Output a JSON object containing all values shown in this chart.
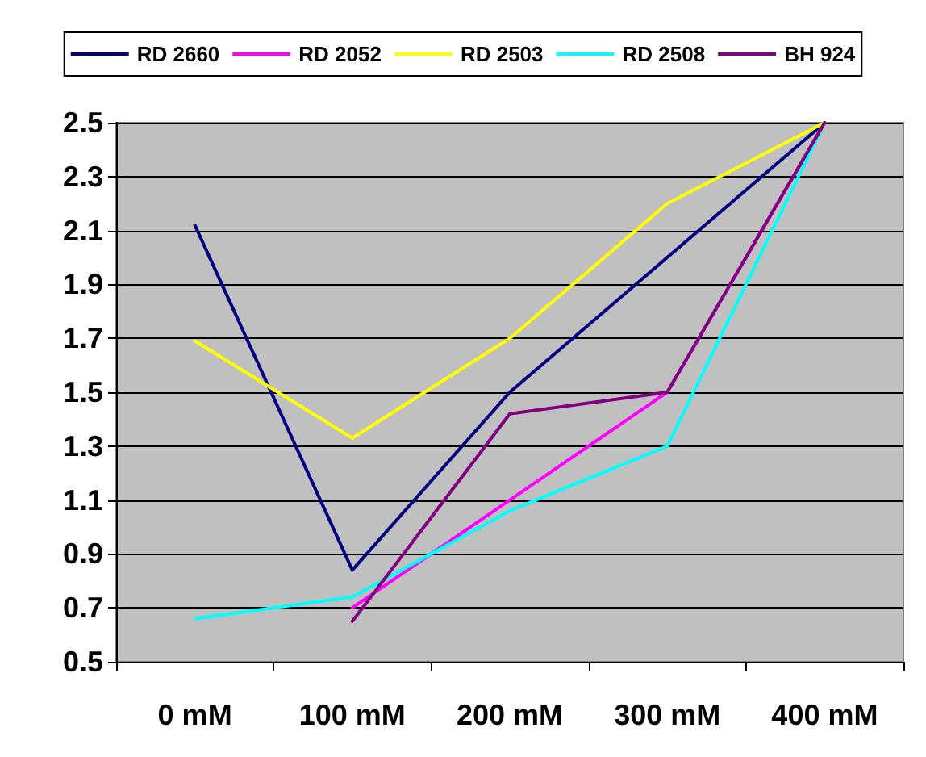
{
  "chart_data": {
    "type": "line",
    "categories": [
      "0 mM",
      "100 mM",
      "200 mM",
      "300 mM",
      "400 mM"
    ],
    "series": [
      {
        "name": "RD 2660",
        "color": "#000080",
        "values": [
          2.12,
          0.84,
          1.5,
          2.0,
          2.5
        ]
      },
      {
        "name": "RD 2052",
        "color": "#ff00ff",
        "values": [
          null,
          0.7,
          1.1,
          1.5,
          2.5
        ]
      },
      {
        "name": "RD 2503",
        "color": "#ffff00",
        "values": [
          1.69,
          1.33,
          1.7,
          2.2,
          2.5
        ]
      },
      {
        "name": "RD 2508",
        "color": "#00ffff",
        "values": [
          0.66,
          0.74,
          1.06,
          1.3,
          2.5
        ]
      },
      {
        "name": "BH 924",
        "color": "#800080",
        "values": [
          null,
          0.65,
          1.42,
          1.5,
          2.5
        ]
      }
    ],
    "ylim": [
      0.5,
      2.5
    ],
    "yticks": [
      0.5,
      0.7,
      0.9,
      1.1,
      1.3,
      1.5,
      1.7,
      1.9,
      2.1,
      2.3,
      2.5
    ],
    "grid": "y",
    "legend": "top",
    "marker": "none",
    "line_style": "solid"
  }
}
